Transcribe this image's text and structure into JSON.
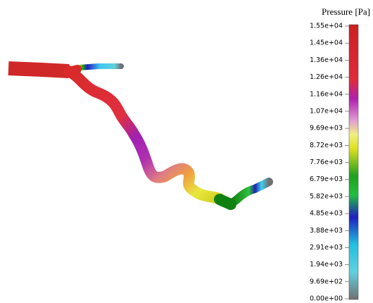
{
  "colorbar": {
    "title": "Pressure [Pa]",
    "ticks": [
      "1.55e+04",
      "1.45e+04",
      "1.36e+04",
      "1.26e+04",
      "1.16e+04",
      "1.07e+04",
      "9.69e+03",
      "8.72e+03",
      "7.76e+03",
      "6.79e+03",
      "5.82e+03",
      "4.85e+03",
      "3.88e+03",
      "2.91e+03",
      "1.94e+03",
      "9.69e+02",
      "0.00e+00"
    ]
  }
}
